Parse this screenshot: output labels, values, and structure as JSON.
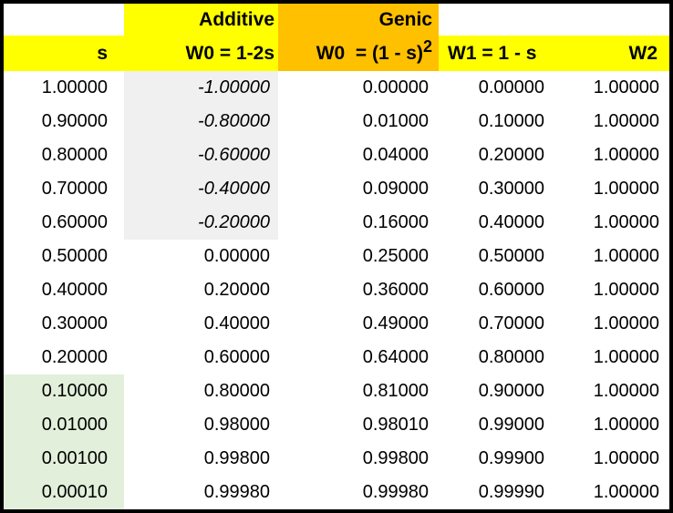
{
  "colors": {
    "header_yellow": "#FFFF00",
    "header_orange": "#FFC000",
    "shaded_gray": "#F0F0F0",
    "shaded_green": "#E2EFDA",
    "border_black": "#000000"
  },
  "header": {
    "corner_label": "",
    "additive_label": "Additive",
    "genic_label": "Genic",
    "blank_w1": "",
    "blank_w2": "",
    "col_s": "s",
    "col_w0_additive": "W0 = 1-2s",
    "col_w0_genic_base": "W0  = (1 - s)",
    "col_w0_genic_sup": "2",
    "col_w1": "W1 = 1 - s",
    "col_w2": "W2"
  },
  "shading": {
    "gray_italic": {
      "column": "w0_additive",
      "rows": [
        0,
        1,
        2,
        3,
        4
      ]
    },
    "green": {
      "column": "s",
      "rows": [
        9,
        10,
        11,
        12
      ]
    }
  },
  "rows": [
    {
      "s": "1.00000",
      "w0_additive": "-1.00000",
      "w0_genic": "0.00000",
      "w1": "0.00000",
      "w2": "1.00000"
    },
    {
      "s": "0.90000",
      "w0_additive": "-0.80000",
      "w0_genic": "0.01000",
      "w1": "0.10000",
      "w2": "1.00000"
    },
    {
      "s": "0.80000",
      "w0_additive": "-0.60000",
      "w0_genic": "0.04000",
      "w1": "0.20000",
      "w2": "1.00000"
    },
    {
      "s": "0.70000",
      "w0_additive": "-0.40000",
      "w0_genic": "0.09000",
      "w1": "0.30000",
      "w2": "1.00000"
    },
    {
      "s": "0.60000",
      "w0_additive": "-0.20000",
      "w0_genic": "0.16000",
      "w1": "0.40000",
      "w2": "1.00000"
    },
    {
      "s": "0.50000",
      "w0_additive": "0.00000",
      "w0_genic": "0.25000",
      "w1": "0.50000",
      "w2": "1.00000"
    },
    {
      "s": "0.40000",
      "w0_additive": "0.20000",
      "w0_genic": "0.36000",
      "w1": "0.60000",
      "w2": "1.00000"
    },
    {
      "s": "0.30000",
      "w0_additive": "0.40000",
      "w0_genic": "0.49000",
      "w1": "0.70000",
      "w2": "1.00000"
    },
    {
      "s": "0.20000",
      "w0_additive": "0.60000",
      "w0_genic": "0.64000",
      "w1": "0.80000",
      "w2": "1.00000"
    },
    {
      "s": "0.10000",
      "w0_additive": "0.80000",
      "w0_genic": "0.81000",
      "w1": "0.90000",
      "w2": "1.00000"
    },
    {
      "s": "0.01000",
      "w0_additive": "0.98000",
      "w0_genic": "0.98010",
      "w1": "0.99000",
      "w2": "1.00000"
    },
    {
      "s": "0.00100",
      "w0_additive": "0.99800",
      "w0_genic": "0.99800",
      "w1": "0.99900",
      "w2": "1.00000"
    },
    {
      "s": "0.00010",
      "w0_additive": "0.99980",
      "w0_genic": "0.99980",
      "w1": "0.99990",
      "w2": "1.00000"
    }
  ]
}
